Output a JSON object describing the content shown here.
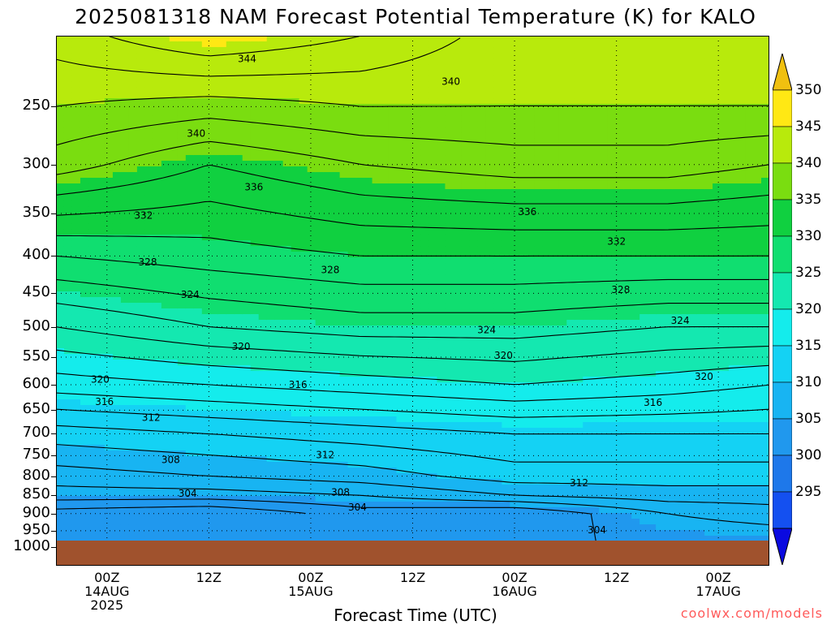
{
  "title": "2025081318 NAM Forecast Potential Temperature (K) for KALO",
  "credit": "coolwx.com/models",
  "chart_data": {
    "type": "heatmap",
    "title": "2025081318 NAM Forecast Potential Temperature (K) for KALO",
    "xlabel": "Forecast Time (UTC)",
    "ylabel": "",
    "x_ticks": [
      {
        "label1": "00Z",
        "label2": "14AUG",
        "label3": "2025",
        "hour": 6
      },
      {
        "label1": "12Z",
        "label2": "",
        "label3": "",
        "hour": 18
      },
      {
        "label1": "00Z",
        "label2": "15AUG",
        "label3": "",
        "hour": 30
      },
      {
        "label1": "12Z",
        "label2": "",
        "label3": "",
        "hour": 42
      },
      {
        "label1": "00Z",
        "label2": "16AUG",
        "label3": "",
        "hour": 54
      },
      {
        "label1": "12Z",
        "label2": "",
        "label3": "",
        "hour": 66
      },
      {
        "label1": "00Z",
        "label2": "17AUG",
        "label3": "",
        "hour": 78
      }
    ],
    "xlim": [
      0,
      84
    ],
    "y_ticks": [
      "250",
      "300",
      "350",
      "400",
      "450",
      "500",
      "550",
      "600",
      "650",
      "700",
      "750",
      "800",
      "850",
      "900",
      "950",
      "1000"
    ],
    "ylim": [
      200,
      1000
    ],
    "y_scale": "log-pressure",
    "grid": true,
    "colorbar": {
      "levels": [
        295,
        300,
        305,
        310,
        315,
        320,
        325,
        330,
        335,
        340,
        345,
        350
      ],
      "labels": [
        "295",
        "300",
        "305",
        "310",
        "315",
        "320",
        "325",
        "330",
        "335",
        "340",
        "345",
        "350"
      ],
      "colors": [
        "#0a0ae0",
        "#1450f0",
        "#1e78ea",
        "#2098ee",
        "#18b4f2",
        "#14d2f4",
        "#14ecec",
        "#14e8b0",
        "#10de70",
        "#10d040",
        "#7add10",
        "#b8ea0c",
        "#ffe814",
        "#f0c010"
      ]
    },
    "profiles": [
      {
        "hour": 0,
        "levels": [
          [
            1000,
            305
          ],
          [
            900,
            301
          ],
          [
            850,
            305
          ],
          [
            800,
            307
          ],
          [
            700,
            311
          ],
          [
            600,
            317
          ],
          [
            500,
            322
          ],
          [
            400,
            328
          ],
          [
            300,
            337
          ],
          [
            250,
            340
          ],
          [
            200,
            343
          ]
        ]
      },
      {
        "hour": 18,
        "levels": [
          [
            1000,
            304
          ],
          [
            900,
            300
          ],
          [
            850,
            305
          ],
          [
            800,
            308
          ],
          [
            700,
            312
          ],
          [
            600,
            318
          ],
          [
            500,
            324
          ],
          [
            400,
            329
          ],
          [
            300,
            334
          ],
          [
            250,
            339
          ],
          [
            200,
            346
          ]
        ]
      },
      {
        "hour": 36,
        "levels": [
          [
            1000,
            304
          ],
          [
            900,
            303
          ],
          [
            850,
            306
          ],
          [
            800,
            309
          ],
          [
            700,
            313
          ],
          [
            600,
            319
          ],
          [
            500,
            325
          ],
          [
            400,
            330
          ],
          [
            300,
            336
          ],
          [
            250,
            340
          ],
          [
            200,
            344
          ]
        ]
      },
      {
        "hour": 54,
        "levels": [
          [
            1000,
            304
          ],
          [
            900,
            302
          ],
          [
            850,
            308
          ],
          [
            800,
            311
          ],
          [
            700,
            314
          ],
          [
            600,
            320
          ],
          [
            500,
            325
          ],
          [
            400,
            330
          ],
          [
            300,
            337
          ],
          [
            250,
            340
          ],
          [
            200,
            341
          ]
        ]
      },
      {
        "hour": 72,
        "levels": [
          [
            1000,
            304
          ],
          [
            900,
            306
          ],
          [
            850,
            309
          ],
          [
            800,
            311
          ],
          [
            700,
            314
          ],
          [
            600,
            319
          ],
          [
            500,
            324
          ],
          [
            400,
            330
          ],
          [
            300,
            337
          ],
          [
            250,
            340
          ],
          [
            200,
            341
          ]
        ]
      },
      {
        "hour": 84,
        "levels": [
          [
            1000,
            304
          ],
          [
            900,
            307
          ],
          [
            850,
            309
          ],
          [
            800,
            311
          ],
          [
            700,
            314
          ],
          [
            600,
            318
          ],
          [
            500,
            324
          ],
          [
            400,
            330
          ],
          [
            300,
            336
          ],
          [
            250,
            340
          ],
          [
            200,
            341
          ]
        ]
      }
    ],
    "contour_labels": [
      {
        "text": "344",
        "hour": 22.5,
        "p": 215
      },
      {
        "text": "340",
        "hour": 46.5,
        "p": 231
      },
      {
        "text": "340",
        "hour": 16.5,
        "p": 272
      },
      {
        "text": "336",
        "hour": 23.3,
        "p": 322
      },
      {
        "text": "336",
        "hour": 55.5,
        "p": 348
      },
      {
        "text": "332",
        "hour": 10.3,
        "p": 352
      },
      {
        "text": "332",
        "hour": 66,
        "p": 382
      },
      {
        "text": "328",
        "hour": 10.8,
        "p": 408
      },
      {
        "text": "328",
        "hour": 32.3,
        "p": 418
      },
      {
        "text": "328",
        "hour": 66.5,
        "p": 445
      },
      {
        "text": "324",
        "hour": 15.8,
        "p": 452
      },
      {
        "text": "324",
        "hour": 50.7,
        "p": 505
      },
      {
        "text": "324",
        "hour": 73.5,
        "p": 490
      },
      {
        "text": "320",
        "hour": 21.8,
        "p": 532
      },
      {
        "text": "320",
        "hour": 5.2,
        "p": 590
      },
      {
        "text": "320",
        "hour": 52.7,
        "p": 547
      },
      {
        "text": "320",
        "hour": 76.3,
        "p": 585
      },
      {
        "text": "316",
        "hour": 28.5,
        "p": 600
      },
      {
        "text": "316",
        "hour": 5.7,
        "p": 633
      },
      {
        "text": "316",
        "hour": 70.3,
        "p": 635
      },
      {
        "text": "312",
        "hour": 11.2,
        "p": 665
      },
      {
        "text": "312",
        "hour": 31.7,
        "p": 748
      },
      {
        "text": "312",
        "hour": 61.6,
        "p": 817
      },
      {
        "text": "308",
        "hour": 13.5,
        "p": 760
      },
      {
        "text": "308",
        "hour": 33.5,
        "p": 842
      },
      {
        "text": "304",
        "hour": 15.5,
        "p": 845
      },
      {
        "text": "304",
        "hour": 35.5,
        "p": 882
      },
      {
        "text": "304",
        "hour": 63.7,
        "p": 948
      }
    ]
  }
}
